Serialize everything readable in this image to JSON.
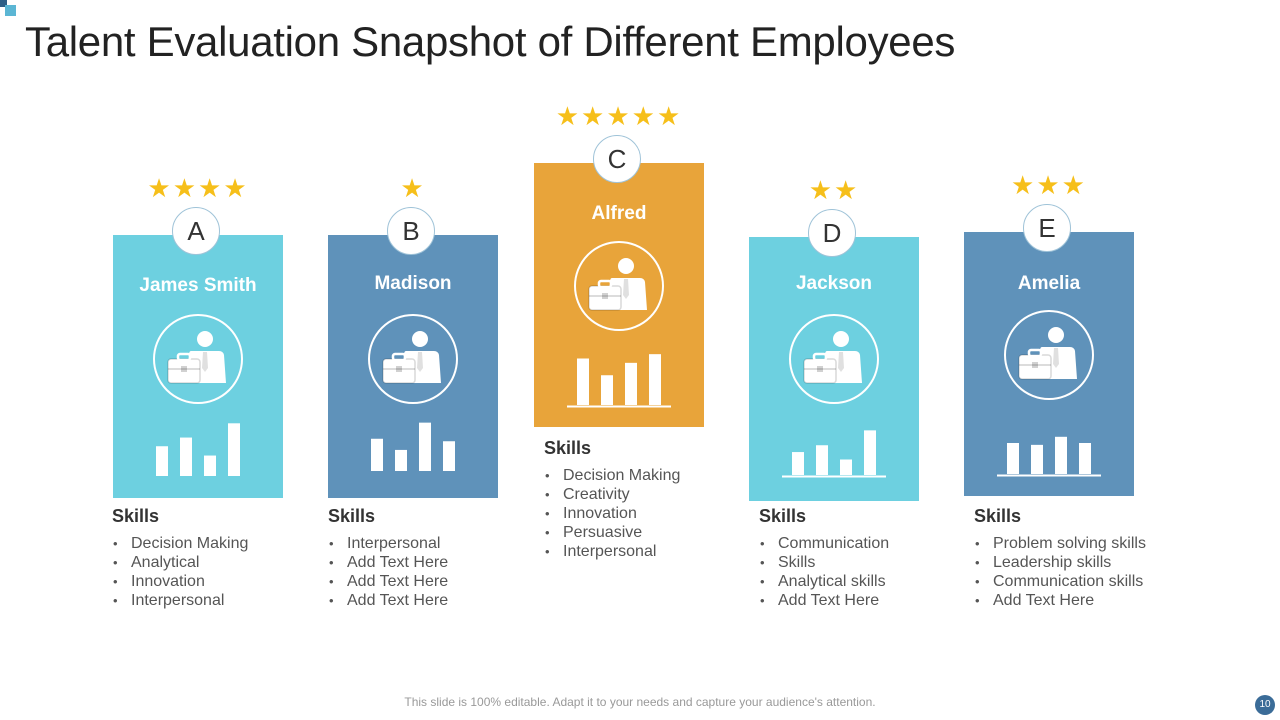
{
  "title": "Talent Evaluation Snapshot of Different Employees",
  "colors": {
    "light_blue": "#6dd0e0",
    "steel_blue": "#5f92ba",
    "orange": "#e8a43a",
    "star": "#f6bf1a"
  },
  "employees": [
    {
      "letter": "A",
      "name": "James Smith",
      "rating": 4,
      "color": "#6dd0e0",
      "icon": "businessman-briefcase-icon",
      "bars": [
        0.48,
        0.62,
        0.33,
        0.85
      ],
      "bars_baseline": false,
      "skills_title": "Skills",
      "skills": [
        "Decision Making",
        "Analytical",
        "Innovation",
        "Interpersonal"
      ]
    },
    {
      "letter": "B",
      "name": "Madison",
      "rating": 1,
      "color": "#5f92ba",
      "icon": "businessman-briefcase-icon",
      "bars": [
        0.52,
        0.34,
        0.78,
        0.48
      ],
      "bars_baseline": false,
      "skills_title": "Skills",
      "skills": [
        "Interpersonal",
        "Add Text Here",
        "Add Text Here",
        "Add Text Here"
      ]
    },
    {
      "letter": "C",
      "name": "Alfred",
      "rating": 5,
      "color": "#e8a43a",
      "icon": "businessman-briefcase-icon",
      "bars": [
        0.75,
        0.48,
        0.68,
        0.82
      ],
      "bars_baseline": true,
      "skills_title": "Skills",
      "skills": [
        "Decision Making",
        "Creativity",
        "Innovation",
        "Persuasive",
        "Interpersonal"
      ]
    },
    {
      "letter": "D",
      "name": "Jackson",
      "rating": 2,
      "color": "#6dd0e0",
      "icon": "businessman-briefcase-icon",
      "bars": [
        0.37,
        0.48,
        0.25,
        0.72
      ],
      "bars_baseline": true,
      "skills_title": "Skills",
      "skills": [
        "Communication",
        "Skills",
        "Analytical skills",
        "Add Text Here"
      ]
    },
    {
      "letter": "E",
      "name": "Amelia",
      "rating": 3,
      "color": "#5f92ba",
      "icon": "businessman-briefcase-icon",
      "bars": [
        0.5,
        0.47,
        0.6,
        0.5
      ],
      "bars_baseline": true,
      "skills_title": "Skills",
      "skills": [
        "Problem solving skills",
        "Leadership skills",
        "Communication skills",
        "Add Text Here"
      ]
    }
  ],
  "footer": "This slide is 100% editable. Adapt it to your needs and capture your audience's attention.",
  "page_number": "10"
}
